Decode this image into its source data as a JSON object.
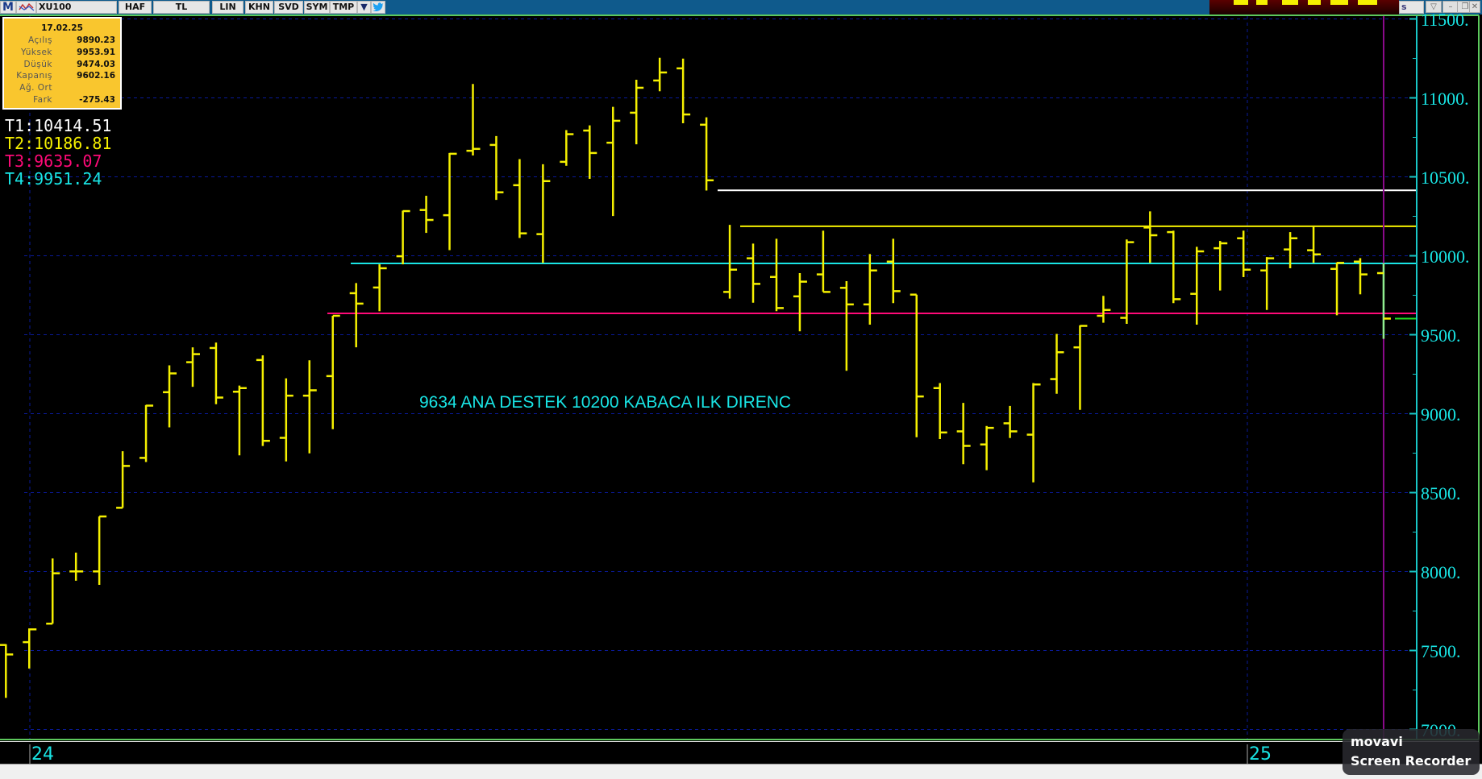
{
  "toolbar": {
    "logo": "M",
    "symbol": "XU100",
    "period": "HAF",
    "currency": "TL",
    "scale": "LIN",
    "buttons": [
      "KHN",
      "SVD",
      "SYM",
      "TMP"
    ],
    "right_field": "s"
  },
  "info": {
    "date": "17.02.25",
    "rows": [
      {
        "label": "Açılış",
        "value": "9890.23"
      },
      {
        "label": "Yüksek",
        "value": "9953.91"
      },
      {
        "label": "Düşük",
        "value": "9474.03"
      },
      {
        "label": "Kapanış",
        "value": "9602.16"
      },
      {
        "label": "Ağ. Ort",
        "value": ""
      },
      {
        "label": "Fark",
        "value": "-275.43"
      }
    ]
  },
  "trendlines": [
    {
      "label": "T1:10414.51",
      "value": 10414.51,
      "color": "#ffffff"
    },
    {
      "label": "T2:10186.81",
      "value": 10186.81,
      "color": "#f5f000"
    },
    {
      "label": "T3:9635.07",
      "value": 9635.07,
      "color": "#ff0a78"
    },
    {
      "label": "T4:9951.24",
      "value": 9951.24,
      "color": "#19e5e5"
    }
  ],
  "annotation": "9634 ANA DESTEK 10200 KABACA ILK DIRENC",
  "watermark": {
    "brand": "movavi",
    "product": "Screen Recorder"
  },
  "chart_data": {
    "type": "ohlc",
    "symbol": "XU100",
    "interval": "weekly",
    "ylim": [
      7000,
      11500
    ],
    "yticks": [
      "11500.",
      "11000.",
      "10500.",
      "10000.",
      "9500.",
      "9000.",
      "8500.",
      "8000.",
      "7500.",
      "7000."
    ],
    "xticks": [
      {
        "label": "24",
        "bar": 1
      },
      {
        "label": "25",
        "bar": 53
      }
    ],
    "grid": true,
    "bar_color": "#f5f000",
    "last_bar_color": "#90ee90",
    "bars": [
      [
        7535,
        7540,
        7200,
        7475
      ],
      [
        7553,
        7640,
        7386,
        7634
      ],
      [
        7670,
        8083,
        7670,
        7989
      ],
      [
        8001,
        8120,
        7942,
        8001
      ],
      [
        8001,
        8349,
        7916,
        8349
      ],
      [
        8404,
        8762,
        8404,
        8669
      ],
      [
        8720,
        9055,
        8694,
        9051
      ],
      [
        9136,
        9306,
        8913,
        9255
      ],
      [
        9326,
        9420,
        9170,
        9377
      ],
      [
        9416,
        9450,
        9060,
        9102
      ],
      [
        9139,
        9178,
        8736,
        9162
      ],
      [
        9340,
        9369,
        8795,
        8828
      ],
      [
        8847,
        9224,
        8698,
        9114
      ],
      [
        9114,
        9338,
        8749,
        9148
      ],
      [
        9238,
        9620,
        8902,
        9620
      ],
      [
        9763,
        9827,
        9420,
        9697
      ],
      [
        9799,
        9946,
        9649,
        9921
      ],
      [
        9997,
        10286,
        9946,
        10283
      ],
      [
        10290,
        10380,
        10145,
        10227
      ],
      [
        10257,
        10651,
        10036,
        10646
      ],
      [
        10665,
        11088,
        10635,
        10677
      ],
      [
        10702,
        10758,
        10354,
        10402
      ],
      [
        10447,
        10612,
        10113,
        10142
      ],
      [
        10137,
        10580,
        9955,
        10473
      ],
      [
        10595,
        10796,
        10570,
        10770
      ],
      [
        10793,
        10826,
        10487,
        10651
      ],
      [
        10716,
        10943,
        10252,
        10855
      ],
      [
        10906,
        11115,
        10706,
        11064
      ],
      [
        11110,
        11254,
        11042,
        11161
      ],
      [
        11187,
        11249,
        10839,
        10895
      ],
      [
        10830,
        10877,
        10413,
        10478
      ],
      [
        9771,
        10196,
        9729,
        9912
      ],
      [
        9984,
        10077,
        9703,
        9822
      ],
      [
        9866,
        10108,
        9649,
        9669
      ],
      [
        9743,
        9890,
        9522,
        9836
      ],
      [
        9882,
        10159,
        9771,
        9771
      ],
      [
        9797,
        9839,
        9272,
        9692
      ],
      [
        9692,
        10011,
        9564,
        9907
      ],
      [
        9963,
        10108,
        9700,
        9776
      ],
      [
        9754,
        9754,
        8851,
        9109
      ],
      [
        9162,
        9194,
        8839,
        8881
      ],
      [
        8888,
        9068,
        8680,
        8796
      ],
      [
        8805,
        8922,
        8642,
        8910
      ],
      [
        8939,
        9049,
        8846,
        8888
      ],
      [
        8867,
        9194,
        8565,
        9185
      ],
      [
        9219,
        9505,
        9126,
        9389
      ],
      [
        9420,
        9559,
        9024,
        9556
      ],
      [
        9620,
        9746,
        9576,
        9657
      ],
      [
        9607,
        10103,
        9569,
        10086
      ],
      [
        10179,
        10281,
        9955,
        10130
      ],
      [
        10150,
        10159,
        9700,
        9725
      ],
      [
        9759,
        10057,
        9564,
        10028
      ],
      [
        10048,
        10094,
        9780,
        10079
      ],
      [
        10111,
        10159,
        9865,
        9912
      ],
      [
        9907,
        9992,
        9657,
        9984
      ],
      [
        10040,
        10150,
        9921,
        10111
      ],
      [
        10035,
        10184,
        9955,
        10009
      ],
      [
        9917,
        9958,
        9623,
        9955
      ],
      [
        9963,
        9985,
        9756,
        9882
      ],
      [
        9890.23,
        9953.91,
        9474.03,
        9602.16
      ]
    ]
  }
}
